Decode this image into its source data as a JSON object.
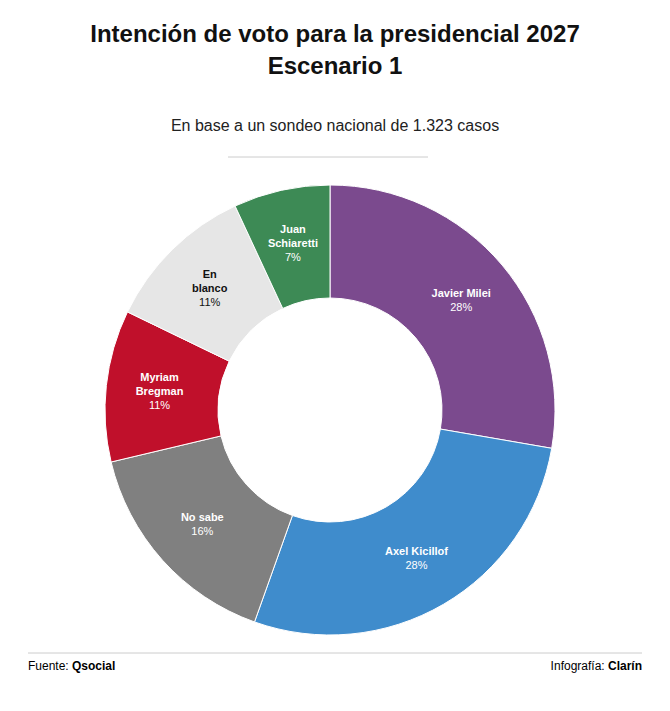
{
  "chart_data": {
    "type": "pie",
    "title": "Intención de voto para la presidencial 2027",
    "scenario": "Escenario 1",
    "subtitle": "En base a un sondeo nacional de 1.323 casos",
    "categories": [
      "Javier Milei",
      "Axel Kicillof",
      "No sabe",
      "Myriam Bregman",
      "En blanco",
      "Juan Schiaretti"
    ],
    "values": [
      28,
      28,
      16,
      11,
      11,
      7
    ],
    "value_labels": [
      "28%",
      "28%",
      "16%",
      "11%",
      "11%",
      "7%"
    ],
    "colors": [
      "#7b4a8e",
      "#3f8ccc",
      "#808080",
      "#c0102b",
      "#e6e6e6",
      "#3d8a55"
    ],
    "data_labels": true,
    "source_label": "Fuente:",
    "source": "Qsocial",
    "credit_label": "Infografía:",
    "credit": "Clarín"
  }
}
